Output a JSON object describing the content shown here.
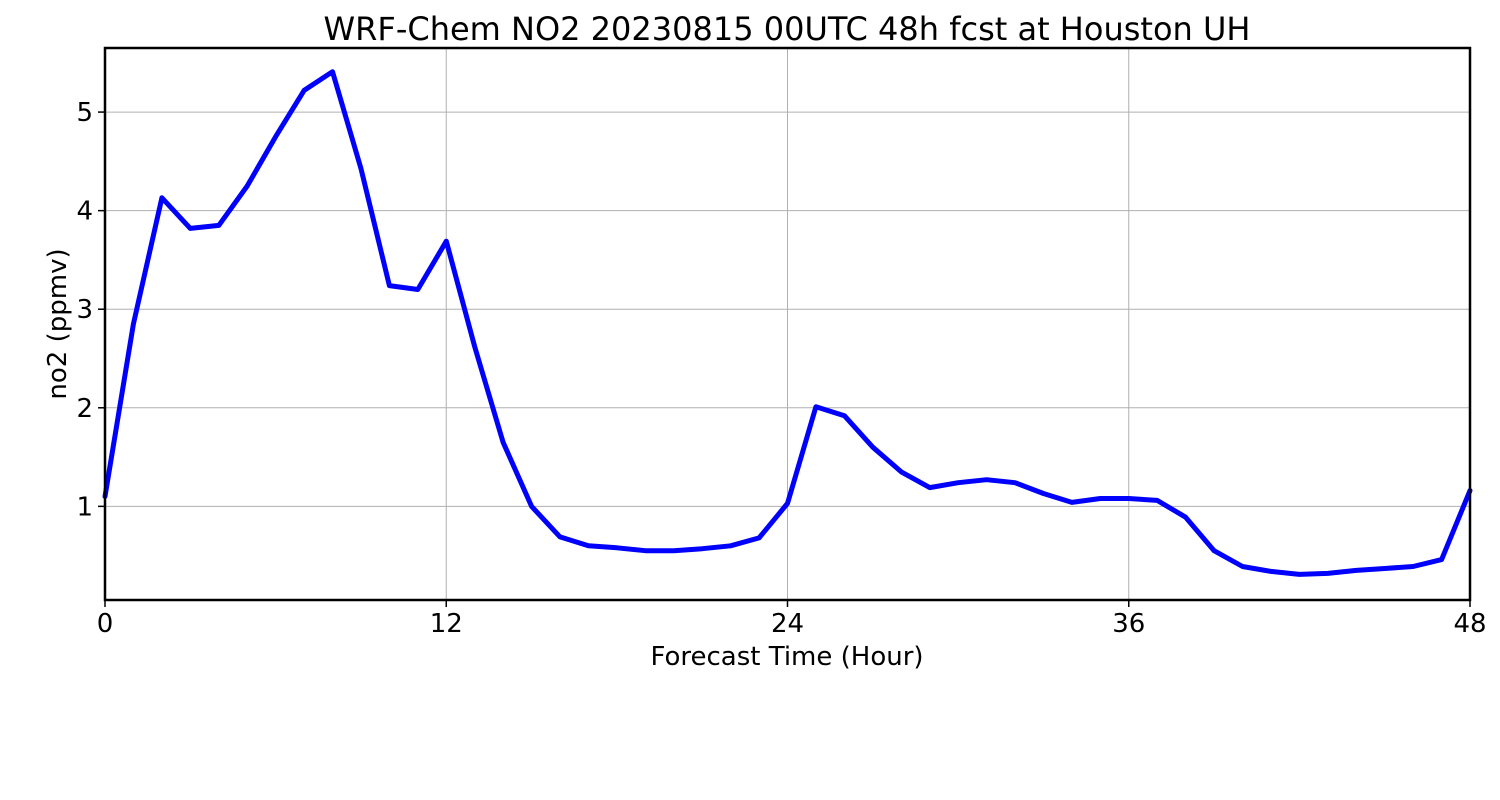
{
  "chart_data": {
    "type": "line",
    "title": "WRF-Chem NO2  20230815 00UTC 48h fcst at Houston UH",
    "xlabel": "Forecast Time (Hour)",
    "ylabel": "no2  (ppmv)",
    "xlim": [
      0,
      48
    ],
    "ylim": [
      0.05,
      5.65
    ],
    "xticks": [
      0,
      12,
      24,
      36,
      48
    ],
    "yticks": [
      1,
      2,
      3,
      4,
      5
    ],
    "grid": true,
    "line_color": "#0000ff",
    "series": [
      {
        "x": [
          0,
          1,
          2,
          3,
          4,
          5,
          6,
          7,
          8,
          9,
          10,
          11,
          12,
          13,
          14,
          15,
          16,
          17,
          18,
          19,
          20,
          21,
          22,
          23,
          24,
          25,
          26,
          27,
          28,
          29,
          30,
          31,
          32,
          33,
          34,
          35,
          36,
          37,
          38,
          39,
          40,
          41,
          42,
          43,
          44,
          45,
          46,
          47,
          48
        ],
        "values": [
          1.1,
          2.85,
          4.13,
          3.82,
          3.85,
          4.25,
          4.75,
          5.22,
          5.41,
          4.43,
          3.24,
          3.2,
          3.69,
          2.62,
          1.65,
          1.0,
          0.69,
          0.6,
          0.58,
          0.55,
          0.55,
          0.57,
          0.6,
          0.68,
          1.03,
          2.01,
          1.92,
          1.6,
          1.35,
          1.19,
          1.24,
          1.27,
          1.24,
          1.13,
          1.04,
          1.08,
          1.08,
          1.06,
          0.89,
          0.55,
          0.39,
          0.34,
          0.31,
          0.32,
          0.35,
          0.37,
          0.39,
          0.46,
          1.16
        ]
      }
    ]
  }
}
